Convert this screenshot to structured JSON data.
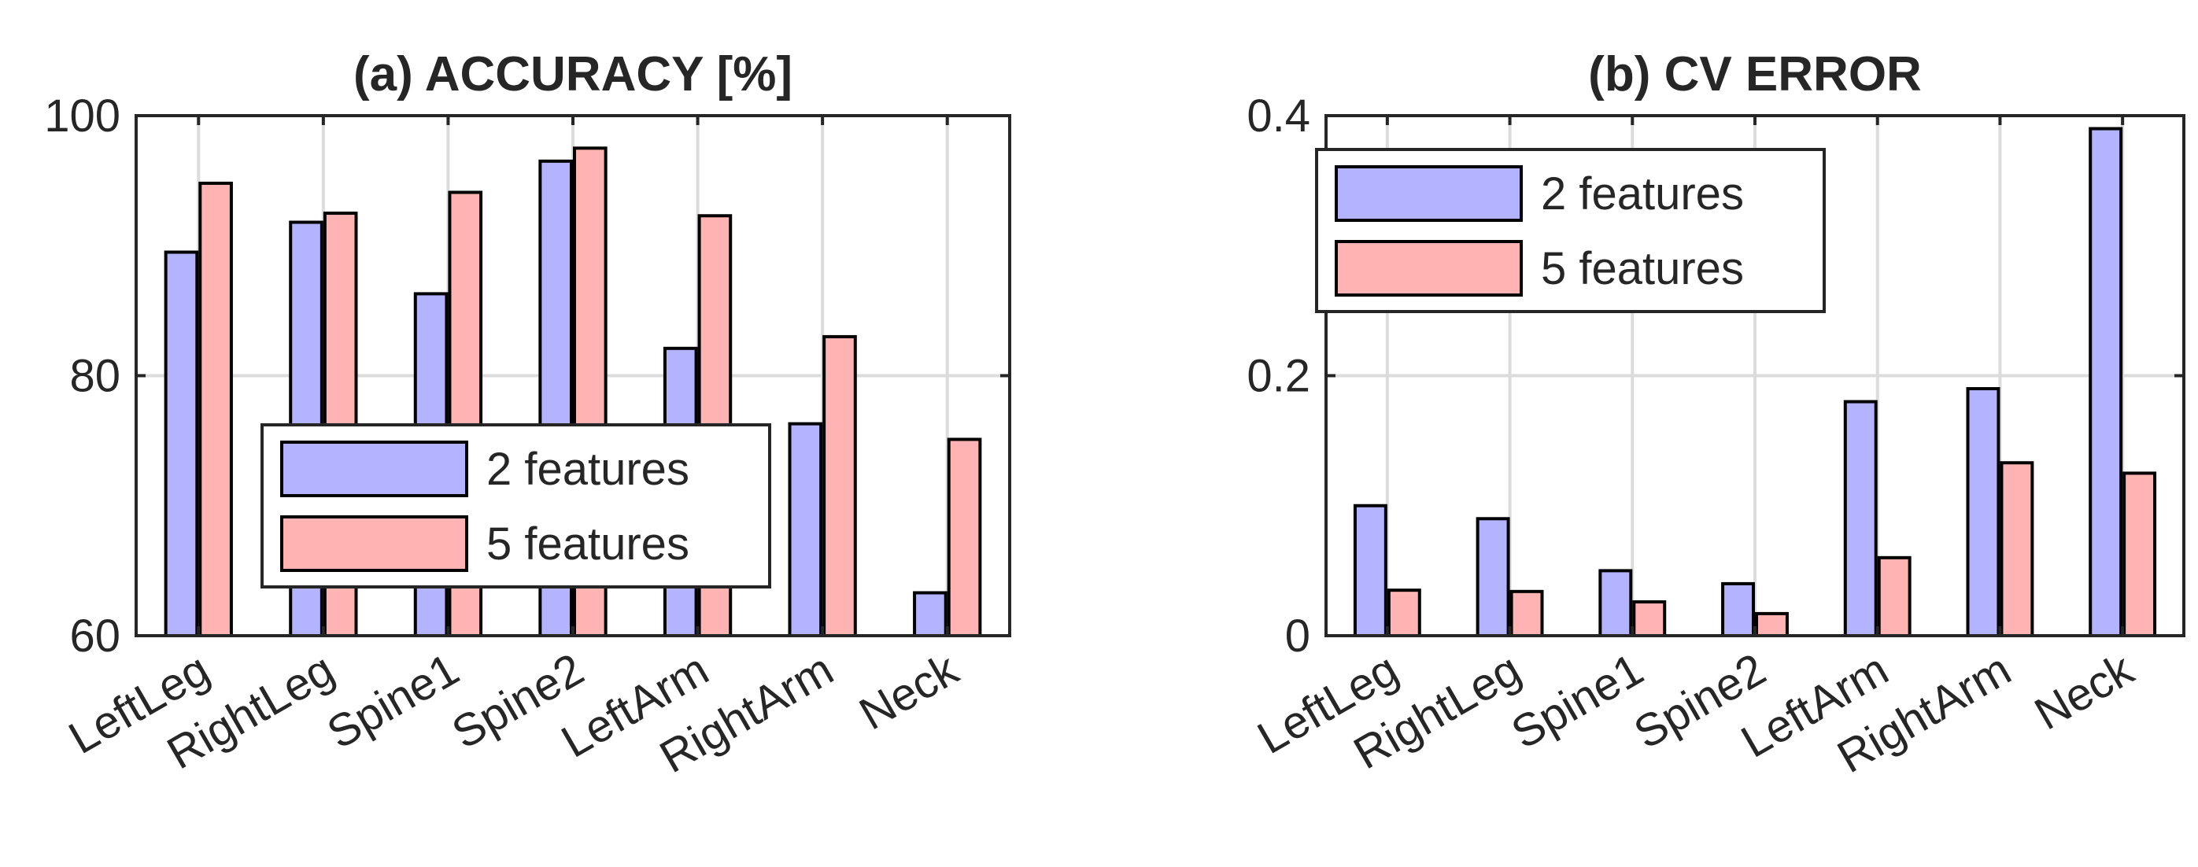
{
  "colors": {
    "series_2": "#b3b3ff",
    "series_5": "#ffb3b3",
    "axis": "#262626",
    "grid": "#dcdcdc"
  },
  "chart_data": [
    {
      "type": "bar",
      "title": "(a) ACCURACY [%]",
      "xlabel": "",
      "ylabel": "",
      "categories": [
        "LeftLeg",
        "RightLeg",
        "Spine1",
        "Spine2",
        "LeftArm",
        "RightArm",
        "Neck"
      ],
      "ylim": [
        60,
        100
      ],
      "yticks": [
        60,
        80,
        100
      ],
      "ytick_labels": [
        "60",
        "80",
        "100"
      ],
      "grid": true,
      "legend_position": "bottom-center",
      "series": [
        {
          "name": "2 features",
          "color": "#b3b3ff",
          "values": [
            89.5,
            91.8,
            86.3,
            96.5,
            82.1,
            76.3,
            63.3
          ]
        },
        {
          "name": "5 features",
          "color": "#ffb3b3",
          "values": [
            94.8,
            92.5,
            94.1,
            97.5,
            92.3,
            83.0,
            75.1
          ]
        }
      ]
    },
    {
      "type": "bar",
      "title": "(b) CV ERROR",
      "xlabel": "",
      "ylabel": "",
      "categories": [
        "LeftLeg",
        "RightLeg",
        "Spine1",
        "Spine2",
        "LeftArm",
        "RightArm",
        "Neck"
      ],
      "ylim": [
        0,
        0.4
      ],
      "yticks": [
        0,
        0.2,
        0.4
      ],
      "ytick_labels": [
        "0",
        "0.2",
        "0.4"
      ],
      "grid": true,
      "legend_position": "top-left",
      "series": [
        {
          "name": "2 features",
          "color": "#b3b3ff",
          "values": [
            0.1,
            0.09,
            0.05,
            0.04,
            0.18,
            0.19,
            0.39
          ]
        },
        {
          "name": "5 features",
          "color": "#ffb3b3",
          "values": [
            0.035,
            0.034,
            0.026,
            0.017,
            0.06,
            0.133,
            0.125
          ]
        }
      ]
    }
  ]
}
